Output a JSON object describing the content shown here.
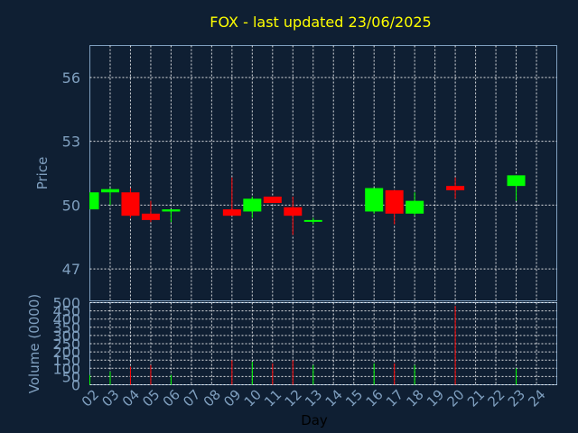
{
  "chart_data": {
    "type": "candlestick",
    "title": "FOX - last updated 23/06/2025",
    "xlabel": "Day",
    "price_panel": {
      "ylabel": "Price",
      "ylim": [
        45.5,
        57.5
      ],
      "yticks": [
        "47",
        "50",
        "53",
        "56"
      ]
    },
    "volume_panel": {
      "ylabel": "Volume (0000)",
      "ylim": [
        0,
        500
      ],
      "yticks": [
        "0",
        "50",
        "100",
        "150",
        "200",
        "250",
        "300",
        "350",
        "400",
        "450",
        "500"
      ]
    },
    "x_ticks": [
      "02",
      "03",
      "04",
      "05",
      "06",
      "07",
      "08",
      "09",
      "10",
      "11",
      "12",
      "13",
      "14",
      "15",
      "16",
      "17",
      "18",
      "19",
      "20",
      "21",
      "22",
      "23",
      "24"
    ],
    "candles": [
      {
        "day": "02",
        "open": 49.8,
        "close": 50.6,
        "high": 50.6,
        "low": 49.8,
        "volume": 60
      },
      {
        "day": "03",
        "open": 50.6,
        "close": 50.75,
        "high": 50.8,
        "low": 50.0,
        "volume": 80
      },
      {
        "day": "04",
        "open": 50.6,
        "close": 49.5,
        "high": 50.8,
        "low": 49.4,
        "volume": 110
      },
      {
        "day": "05",
        "open": 49.6,
        "close": 49.3,
        "high": 50.2,
        "low": 49.2,
        "volume": 120
      },
      {
        "day": "06",
        "open": 49.7,
        "close": 49.8,
        "high": 49.8,
        "low": 49.2,
        "volume": 60
      },
      {
        "day": "09",
        "open": 49.8,
        "close": 49.5,
        "high": 51.3,
        "low": 49.5,
        "volume": 150
      },
      {
        "day": "10",
        "open": 49.7,
        "close": 50.3,
        "high": 50.4,
        "low": 49.4,
        "volume": 140
      },
      {
        "day": "11",
        "open": 50.4,
        "close": 50.1,
        "high": 50.4,
        "low": 50.1,
        "volume": 130
      },
      {
        "day": "12",
        "open": 49.9,
        "close": 49.5,
        "high": 50.4,
        "low": 48.6,
        "volume": 150
      },
      {
        "day": "13",
        "open": 49.25,
        "close": 49.3,
        "high": 49.4,
        "low": 49.1,
        "volume": 120
      },
      {
        "day": "16",
        "open": 49.7,
        "close": 50.8,
        "high": 50.8,
        "low": 49.6,
        "volume": 130
      },
      {
        "day": "17",
        "open": 50.7,
        "close": 49.6,
        "high": 50.7,
        "low": 49.1,
        "volume": 130
      },
      {
        "day": "18",
        "open": 49.6,
        "close": 50.2,
        "high": 50.6,
        "low": 49.5,
        "volume": 120
      },
      {
        "day": "20",
        "open": 50.9,
        "close": 50.7,
        "high": 51.3,
        "low": 50.3,
        "volume": 480
      },
      {
        "day": "23",
        "open": 50.9,
        "close": 51.4,
        "high": 51.4,
        "low": 50.2,
        "volume": 100
      }
    ],
    "colors": {
      "background": "#0f1f33",
      "axis": "#7f9fbf",
      "grid": "#ffffff",
      "up": "#00ff00",
      "down": "#ff0000",
      "title": "#ffff00"
    },
    "grid": true
  }
}
